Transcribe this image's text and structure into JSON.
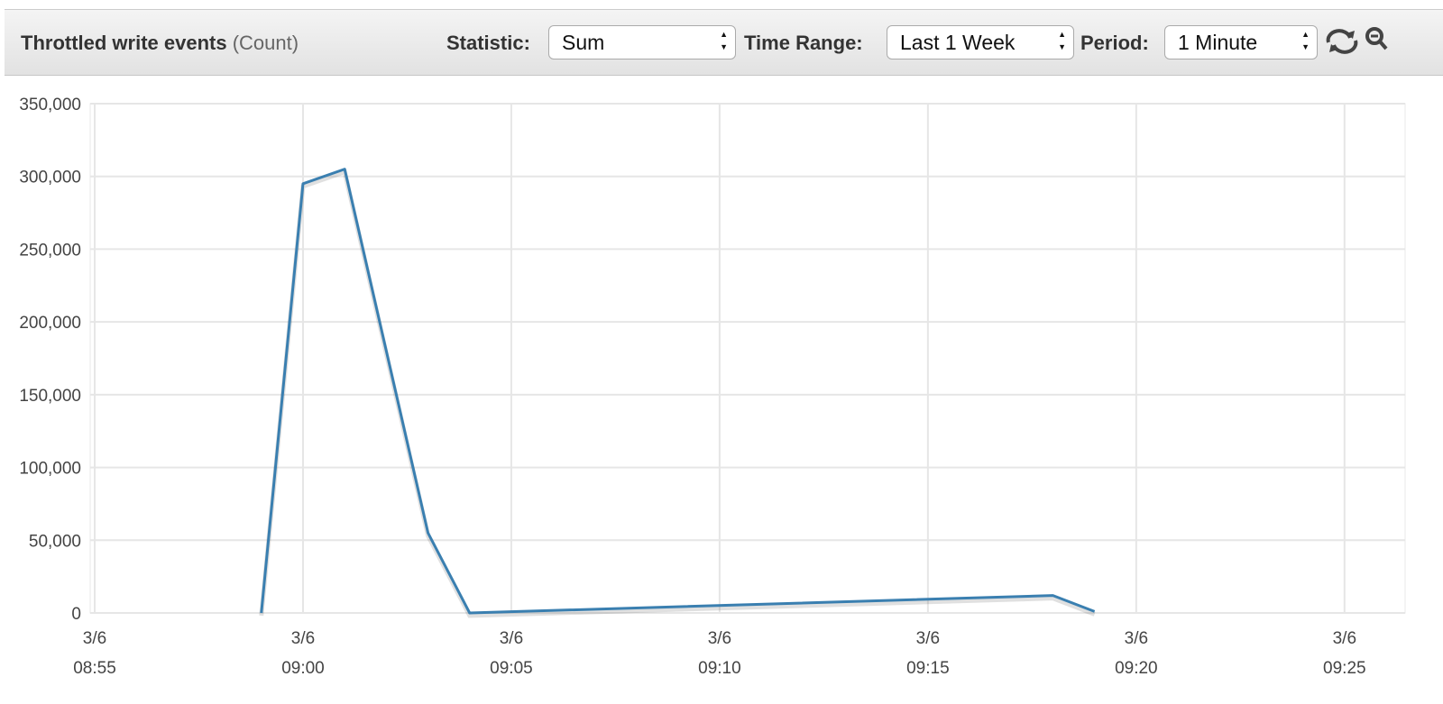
{
  "header": {
    "title": "Throttled write events",
    "unit": "(Count)",
    "statistic_label": "Statistic:",
    "statistic": "Sum",
    "time_range_label": "Time Range:",
    "time_range": "Last 1 Week",
    "period_label": "Period:",
    "period": "1 Minute"
  },
  "chart_data": {
    "type": "line",
    "color": "#3a7fb0",
    "x": [
      "3/6 08:59",
      "3/6 09:00",
      "3/6 09:01",
      "3/6 09:03",
      "3/6 09:04",
      "3/6 09:18",
      "3/6 09:19"
    ],
    "values": [
      0,
      295000,
      305000,
      55000,
      0,
      12000,
      1000
    ],
    "xlim": [
      "3/6 08:55",
      "3/6 09:26"
    ],
    "xticks": [
      "3/6 08:55",
      "3/6 09:00",
      "3/6 09:05",
      "3/6 09:10",
      "3/6 09:15",
      "3/6 09:20",
      "3/6 09:25"
    ],
    "ylim": [
      0,
      350000
    ],
    "yticks": [
      0,
      {
        "value": 50000,
        "label": "50,000"
      },
      {
        "value": 100000,
        "label": "100,000"
      },
      {
        "value": 150000,
        "label": "150,000"
      },
      {
        "value": 200000,
        "label": "200,000"
      },
      {
        "value": 250000,
        "label": "250,000"
      },
      {
        "value": 300000,
        "label": "300,000"
      },
      {
        "value": 350000,
        "label": "350,000"
      }
    ],
    "grid": true
  }
}
